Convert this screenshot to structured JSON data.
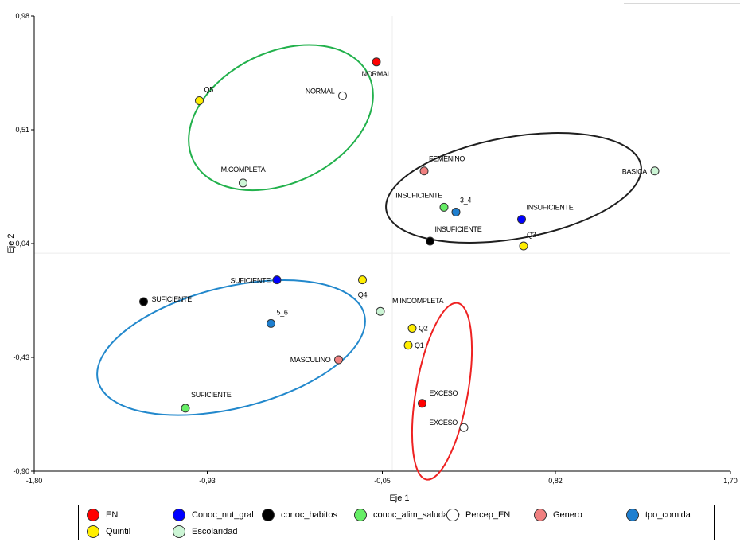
{
  "chart_data": {
    "type": "scatter",
    "xlabel": "Eje 1",
    "ylabel": "Eje 2",
    "xlim": [
      -1.8,
      1.7
    ],
    "ylim": [
      -0.9,
      0.98
    ],
    "xticks": [
      "-1,80",
      "-0,93",
      "-0,05",
      "0,82",
      "1,70"
    ],
    "xtick_values": [
      -1.8,
      -0.93,
      -0.05,
      0.82,
      1.7
    ],
    "yticks": [
      "0,98",
      "0,51",
      "0,04",
      "-0,43",
      "-0,90"
    ],
    "ytick_values": [
      0.98,
      0.51,
      0.04,
      -0.43,
      -0.9
    ],
    "grid": false,
    "legend_position": "bottom",
    "groups": [
      {
        "name": "EN",
        "color": "#ff0000"
      },
      {
        "name": "Conoc_nut_gral",
        "color": "#0000ff"
      },
      {
        "name": "conoc_habitos",
        "color": "#000000"
      },
      {
        "name": "conoc_alim_saludable",
        "color": "#66ee66"
      },
      {
        "name": "Percep_EN",
        "color": "#ffffff"
      },
      {
        "name": "Genero",
        "color": "#f08080"
      },
      {
        "name": "tpo_comida",
        "color": "#1e7fd0"
      },
      {
        "name": "Quintil",
        "color": "#ffee00"
      },
      {
        "name": "Escolaridad",
        "color": "#ccf5d5"
      }
    ],
    "points": [
      {
        "label": "NORMAL",
        "group": "EN",
        "x": -0.08,
        "y": 0.79
      },
      {
        "label": "NORMAL",
        "group": "Percep_EN",
        "x": -0.25,
        "y": 0.65
      },
      {
        "label": "Q5",
        "group": "Quintil",
        "x": -0.97,
        "y": 0.63
      },
      {
        "label": "M.COMPLETA",
        "group": "Escolaridad",
        "x": -0.75,
        "y": 0.29
      },
      {
        "label": "FEMENINO",
        "group": "Genero",
        "x": 0.16,
        "y": 0.34
      },
      {
        "label": "BASICA",
        "group": "Escolaridad",
        "x": 1.32,
        "y": 0.34
      },
      {
        "label": "INSUFICIENTE",
        "group": "conoc_alim_saludable",
        "x": 0.26,
        "y": 0.19
      },
      {
        "label": "3_4",
        "group": "tpo_comida",
        "x": 0.32,
        "y": 0.17
      },
      {
        "label": "INSUFICIENTE",
        "group": "Conoc_nut_gral",
        "x": 0.65,
        "y": 0.14
      },
      {
        "label": "INSUFICIENTE",
        "group": "conoc_habitos",
        "x": 0.19,
        "y": 0.05
      },
      {
        "label": "Q3",
        "group": "Quintil",
        "x": 0.66,
        "y": 0.03
      },
      {
        "label": "SUFICIENTE",
        "group": "Conoc_nut_gral",
        "x": -0.58,
        "y": -0.11
      },
      {
        "label": "Q4",
        "group": "Quintil",
        "x": -0.15,
        "y": -0.11
      },
      {
        "label": "SUFICIENTE",
        "group": "conoc_habitos",
        "x": -1.25,
        "y": -0.2
      },
      {
        "label": "5_6",
        "group": "tpo_comida",
        "x": -0.61,
        "y": -0.29
      },
      {
        "label": "M.INCOMPLETA",
        "group": "Escolaridad",
        "x": -0.06,
        "y": -0.24
      },
      {
        "label": "Q2",
        "group": "Quintil",
        "x": 0.1,
        "y": -0.31
      },
      {
        "label": "Q1",
        "group": "Quintil",
        "x": 0.08,
        "y": -0.38
      },
      {
        "label": "MASCULINO",
        "group": "Genero",
        "x": -0.27,
        "y": -0.44
      },
      {
        "label": "EXCESO",
        "group": "EN",
        "x": 0.15,
        "y": -0.62
      },
      {
        "label": "EXCESO",
        "group": "Percep_EN",
        "x": 0.36,
        "y": -0.72
      },
      {
        "label": "SUFICIENTE",
        "group": "conoc_alim_saludable",
        "x": -1.04,
        "y": -0.64
      }
    ],
    "ellipses": [
      {
        "color": "#22b14c",
        "cx": -0.56,
        "cy": 0.56,
        "rx": 0.49,
        "ry": 0.27,
        "angle": 26
      },
      {
        "color": "#1f1f1f",
        "cx": 0.61,
        "cy": 0.27,
        "rx": 0.65,
        "ry": 0.21,
        "angle": 10
      },
      {
        "color": "#2288cc",
        "cx": -0.81,
        "cy": -0.39,
        "rx": 0.69,
        "ry": 0.25,
        "angle": 14
      },
      {
        "color": "#ee2222",
        "cx": 0.25,
        "cy": -0.57,
        "rx": 0.13,
        "ry": 0.37,
        "angle": -10
      }
    ]
  }
}
